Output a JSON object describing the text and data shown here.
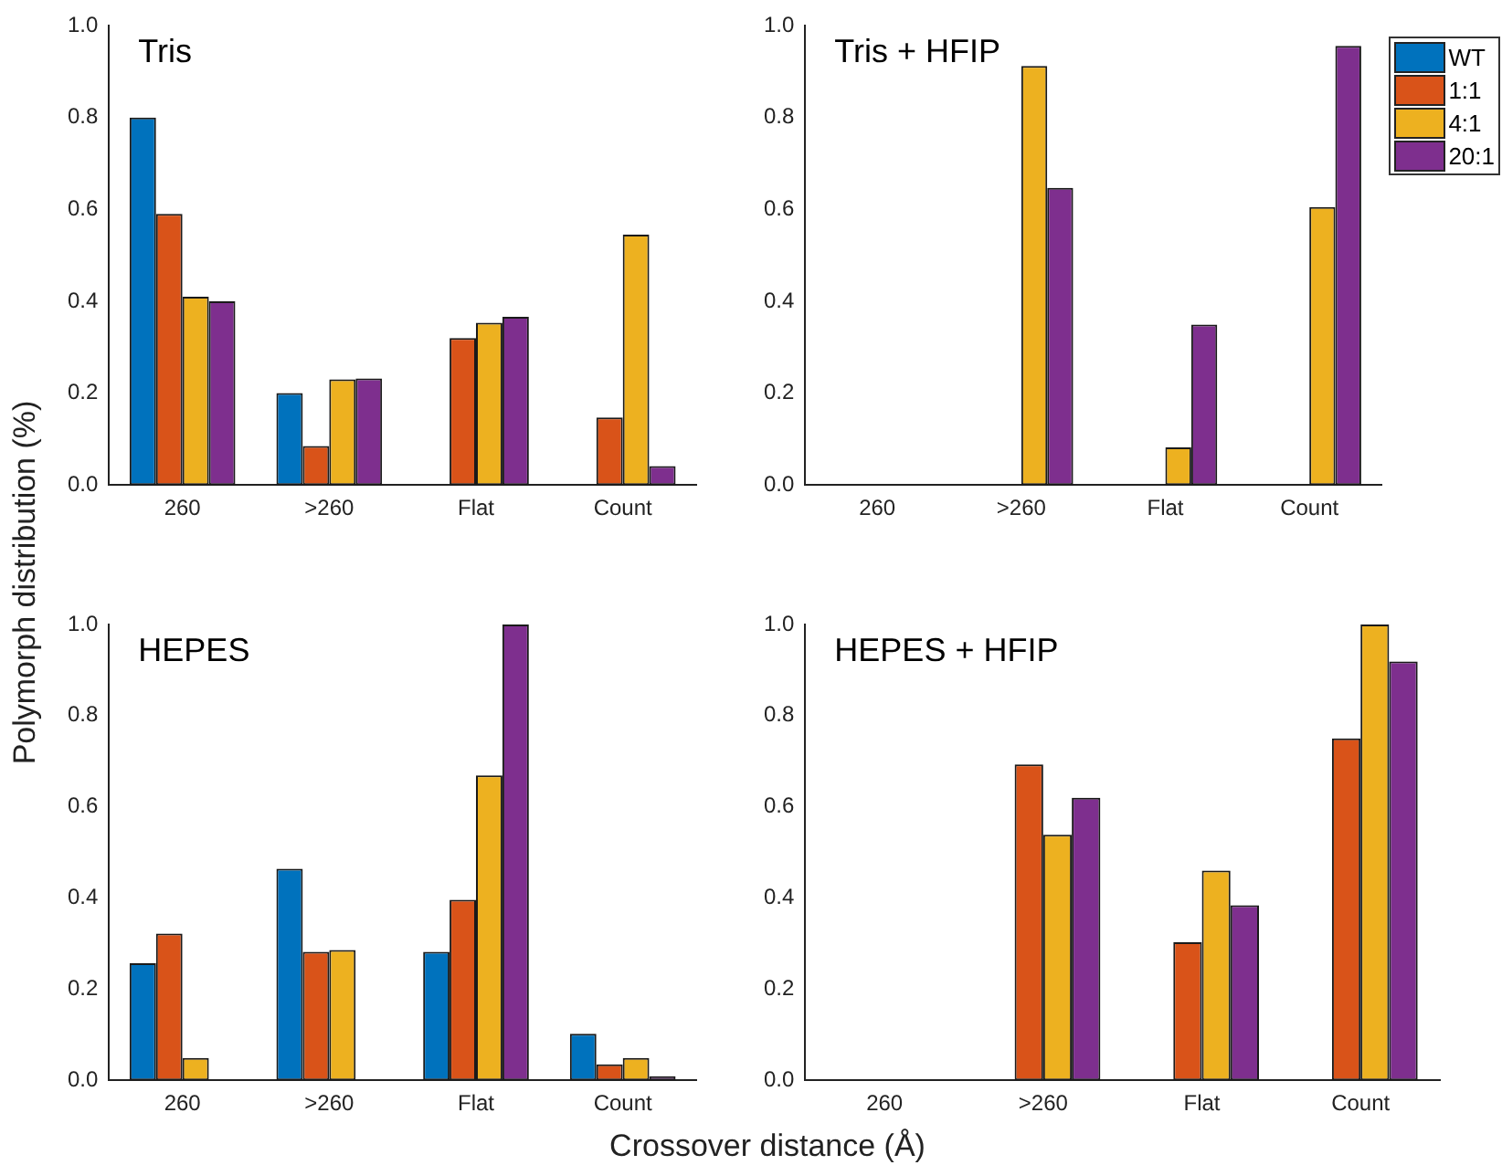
{
  "chart_data": [
    {
      "type": "bar",
      "title": "Tris",
      "ylabel": "Polymorph distribution (%)",
      "categories": [
        "260",
        ">260",
        "Flat",
        "Count"
      ],
      "series": [
        {
          "color": "#0072bd",
          "values": [
            0.8,
            0.2,
            0,
            0
          ]
        },
        {
          "color": "#d95319",
          "values": [
            0.59,
            0.085,
            0.32,
            0.147
          ]
        },
        {
          "color": "#edb120",
          "values": [
            0.41,
            0.23,
            0.353,
            0.545
          ]
        },
        {
          "color": "#7e2f8e",
          "values": [
            0.4,
            0.232,
            0.366,
            0.041
          ]
        }
      ],
      "ylim": [
        0,
        1
      ],
      "yticks": [
        {
          "value": 0,
          "label": "0.0"
        },
        {
          "value": 0.2,
          "label": "0.2"
        },
        {
          "value": 0.4,
          "label": "0.4"
        },
        {
          "value": 0.6,
          "label": "0.6"
        },
        {
          "value": 0.8,
          "label": "0.8"
        },
        {
          "value": 1,
          "label": "1.0"
        }
      ],
      "grid": false,
      "legend": false
    },
    {
      "type": "bar",
      "title": "Tris + HFIP",
      "categories": [
        "260",
        ">260",
        "Flat",
        "Count"
      ],
      "series": [
        {
          "name": "WT",
          "color": "#0072bd",
          "values": [
            0,
            0,
            0,
            0
          ]
        },
        {
          "name": "1:1",
          "color": "#d95319",
          "values": [
            0,
            0,
            0,
            0
          ]
        },
        {
          "name": "4:1",
          "color": "#edb120",
          "values": [
            0,
            0.912,
            0.082,
            0.605
          ]
        },
        {
          "name": "20:1",
          "color": "#7e2f8e",
          "values": [
            0,
            0.647,
            0.349,
            0.956
          ]
        }
      ],
      "ylim": [
        0,
        1
      ],
      "yticks": [
        {
          "value": 0,
          "label": "0.0"
        },
        {
          "value": 0.2,
          "label": "0.2"
        },
        {
          "value": 0.4,
          "label": "0.4"
        },
        {
          "value": 0.6,
          "label": "0.6"
        },
        {
          "value": 0.8,
          "label": "0.8"
        },
        {
          "value": 1,
          "label": "1.0"
        }
      ],
      "grid": false,
      "legend": "top right"
    },
    {
      "type": "bar",
      "title": "HEPES",
      "xlabel": "Crossover distance (Å)",
      "categories": [
        "260",
        ">260",
        "Flat",
        "Count"
      ],
      "series": [
        {
          "color": "#0072bd",
          "values": [
            0.257,
            0.464,
            0.282,
            0.102
          ]
        },
        {
          "color": "#d95319",
          "values": [
            0.322,
            0.282,
            0.396,
            0.035
          ]
        },
        {
          "color": "#edb120",
          "values": [
            0.049,
            0.286,
            0.669,
            0.049
          ]
        },
        {
          "color": "#7e2f8e",
          "values": [
            0,
            0,
            1.0,
            0.009
          ]
        }
      ],
      "ylim": [
        0,
        1
      ],
      "yticks": [
        {
          "value": 0,
          "label": "0.0"
        },
        {
          "value": 0.2,
          "label": "0.2"
        },
        {
          "value": 0.4,
          "label": "0.4"
        },
        {
          "value": 0.6,
          "label": "0.6"
        },
        {
          "value": 0.8,
          "label": "0.8"
        },
        {
          "value": 1,
          "label": "1.0"
        }
      ],
      "grid": false,
      "legend": false
    },
    {
      "type": "bar",
      "title": "HEPES + HFIP",
      "categories": [
        "260",
        ">260",
        "Flat",
        "Count"
      ],
      "series": [
        {
          "color": "#0072bd",
          "values": [
            0,
            0,
            0,
            0
          ]
        },
        {
          "color": "#d95319",
          "values": [
            0,
            0.693,
            0.303,
            0.75
          ]
        },
        {
          "color": "#edb120",
          "values": [
            0,
            0.539,
            0.46,
            1.0
          ]
        },
        {
          "color": "#7e2f8e",
          "values": [
            0,
            0.62,
            0.384,
            0.919
          ]
        }
      ],
      "ylim": [
        0,
        1
      ],
      "yticks": [
        {
          "value": 0,
          "label": "0.0"
        },
        {
          "value": 0.2,
          "label": "0.2"
        },
        {
          "value": 0.4,
          "label": "0.4"
        },
        {
          "value": 0.6,
          "label": "0.6"
        },
        {
          "value": 0.8,
          "label": "0.8"
        },
        {
          "value": 1,
          "label": "1.0"
        }
      ],
      "grid": false,
      "legend": false
    }
  ]
}
